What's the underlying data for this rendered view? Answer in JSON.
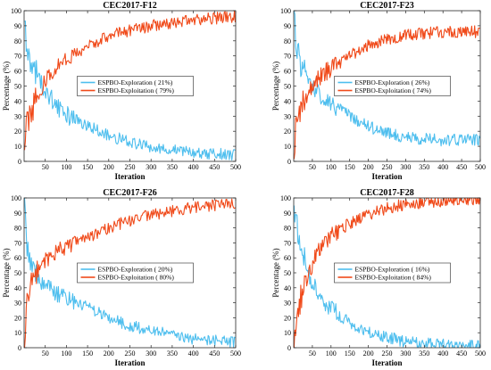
{
  "colors": {
    "exploration": "#4DBEEE",
    "exploitation": "#F04A1A",
    "axis": "#262626"
  },
  "chart_data": [
    {
      "type": "line",
      "title": "CEC2017-F12",
      "xlabel": "Iteration",
      "ylabel": "Percentage (%)",
      "xlim": [
        0,
        500
      ],
      "ylim": [
        0,
        100
      ],
      "xticks": [
        50,
        100,
        150,
        200,
        250,
        300,
        350,
        400,
        450,
        500
      ],
      "yticks": [
        0,
        10,
        20,
        30,
        40,
        50,
        60,
        70,
        80,
        90,
        100
      ],
      "legend_position": "center",
      "series": [
        {
          "name": "ESPBO-Exploration ( 21%)",
          "color": "#4DBEEE",
          "x": [
            1,
            3,
            5,
            10,
            15,
            20,
            30,
            40,
            50,
            60,
            70,
            80,
            100,
            120,
            150,
            180,
            200,
            250,
            300,
            350,
            400,
            450,
            500
          ],
          "y": [
            100,
            88,
            78,
            72,
            68,
            65,
            58,
            52,
            47,
            43,
            40,
            36,
            31,
            28,
            24,
            20,
            17,
            13,
            10,
            8,
            6,
            5,
            4
          ]
        },
        {
          "name": "ESPBO-Exploitation ( 79%)",
          "color": "#F04A1A",
          "x": [
            1,
            3,
            5,
            10,
            15,
            20,
            30,
            40,
            50,
            60,
            70,
            80,
            100,
            120,
            150,
            180,
            200,
            250,
            300,
            350,
            400,
            450,
            500
          ],
          "y": [
            0,
            12,
            22,
            28,
            32,
            35,
            42,
            48,
            53,
            57,
            60,
            64,
            69,
            72,
            76,
            80,
            83,
            87,
            90,
            92,
            94,
            95,
            96
          ]
        }
      ]
    },
    {
      "type": "line",
      "title": "CEC2017-F23",
      "xlabel": "Iteration",
      "ylabel": "Percentage (%)",
      "xlim": [
        0,
        500
      ],
      "ylim": [
        0,
        100
      ],
      "xticks": [
        50,
        100,
        150,
        200,
        250,
        300,
        350,
        400,
        450,
        500
      ],
      "yticks": [
        0,
        10,
        20,
        30,
        40,
        50,
        60,
        70,
        80,
        90,
        100
      ],
      "legend_position": "center",
      "series": [
        {
          "name": "ESPBO-Exploration ( 26%)",
          "color": "#4DBEEE",
          "x": [
            1,
            3,
            5,
            10,
            15,
            20,
            30,
            40,
            50,
            60,
            70,
            80,
            100,
            120,
            150,
            180,
            200,
            250,
            300,
            350,
            400,
            450,
            500
          ],
          "y": [
            100,
            90,
            80,
            72,
            68,
            64,
            58,
            54,
            50,
            47,
            44,
            42,
            38,
            35,
            30,
            26,
            23,
            19,
            16,
            15,
            14,
            14,
            14
          ]
        },
        {
          "name": "ESPBO-Exploitation ( 74%)",
          "color": "#F04A1A",
          "x": [
            1,
            3,
            5,
            10,
            15,
            20,
            30,
            40,
            50,
            60,
            70,
            80,
            100,
            120,
            150,
            180,
            200,
            250,
            300,
            350,
            400,
            450,
            500
          ],
          "y": [
            0,
            10,
            20,
            28,
            32,
            36,
            42,
            46,
            50,
            53,
            56,
            58,
            62,
            65,
            70,
            74,
            77,
            81,
            84,
            85,
            86,
            86,
            86
          ]
        }
      ]
    },
    {
      "type": "line",
      "title": "CEC2017-F26",
      "xlabel": "Iteration",
      "ylabel": "Percentage (%)",
      "xlim": [
        0,
        500
      ],
      "ylim": [
        0,
        100
      ],
      "xticks": [
        50,
        100,
        150,
        200,
        250,
        300,
        350,
        400,
        450,
        500
      ],
      "yticks": [
        0,
        10,
        20,
        30,
        40,
        50,
        60,
        70,
        80,
        90,
        100
      ],
      "legend_position": "center",
      "series": [
        {
          "name": "ESPBO-Exploration ( 20%)",
          "color": "#4DBEEE",
          "x": [
            1,
            3,
            5,
            10,
            15,
            20,
            30,
            40,
            50,
            60,
            70,
            80,
            100,
            120,
            150,
            180,
            200,
            250,
            300,
            350,
            400,
            450,
            500
          ],
          "y": [
            100,
            85,
            72,
            62,
            56,
            52,
            48,
            45,
            42,
            40,
            38,
            36,
            33,
            30,
            27,
            23,
            20,
            15,
            11,
            9,
            6,
            5,
            4
          ]
        },
        {
          "name": "ESPBO-Exploitation ( 80%)",
          "color": "#F04A1A",
          "x": [
            1,
            3,
            5,
            10,
            15,
            20,
            30,
            40,
            50,
            60,
            70,
            80,
            100,
            120,
            150,
            180,
            200,
            250,
            300,
            350,
            400,
            450,
            500
          ],
          "y": [
            0,
            15,
            28,
            38,
            44,
            48,
            52,
            55,
            58,
            60,
            62,
            64,
            67,
            70,
            73,
            77,
            80,
            85,
            89,
            91,
            94,
            95,
            96
          ]
        }
      ]
    },
    {
      "type": "line",
      "title": "CEC2017-F28",
      "xlabel": "Iteration",
      "ylabel": "Percentage (%)",
      "xlim": [
        0,
        500
      ],
      "ylim": [
        0,
        100
      ],
      "xticks": [
        50,
        100,
        150,
        200,
        250,
        300,
        350,
        400,
        450,
        500
      ],
      "yticks": [
        0,
        10,
        20,
        30,
        40,
        50,
        60,
        70,
        80,
        90,
        100
      ],
      "legend_position": "center",
      "series": [
        {
          "name": "ESPBO-Exploration ( 16%)",
          "color": "#4DBEEE",
          "x": [
            1,
            3,
            5,
            10,
            15,
            20,
            30,
            40,
            50,
            60,
            70,
            80,
            100,
            120,
            150,
            180,
            200,
            250,
            300,
            350,
            400,
            450,
            500
          ],
          "y": [
            100,
            92,
            85,
            78,
            72,
            66,
            58,
            50,
            44,
            39,
            35,
            31,
            26,
            22,
            17,
            13,
            11,
            7,
            4,
            3,
            2,
            1,
            1
          ]
        },
        {
          "name": "ESPBO-Exploitation ( 84%)",
          "color": "#F04A1A",
          "x": [
            1,
            3,
            5,
            10,
            15,
            20,
            30,
            40,
            50,
            60,
            70,
            80,
            100,
            120,
            150,
            180,
            200,
            250,
            300,
            350,
            400,
            450,
            500
          ],
          "y": [
            0,
            8,
            15,
            22,
            28,
            34,
            42,
            50,
            56,
            61,
            65,
            69,
            74,
            78,
            83,
            87,
            89,
            93,
            96,
            97,
            98,
            99,
            99
          ]
        }
      ]
    }
  ]
}
